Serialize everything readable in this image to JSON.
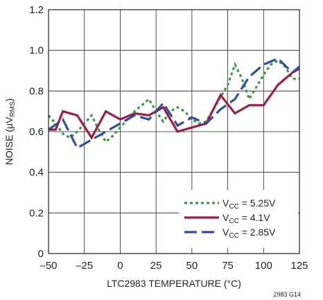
{
  "chart_data": {
    "type": "line",
    "xlabel": "LTC2983 TEMPERATURE (°C)",
    "ylabel": "NOISE (µV",
    "ylabel_sub": "RMS",
    "ylabel_suffix": ")",
    "xlim": [
      -50,
      125
    ],
    "ylim": [
      0,
      1.2
    ],
    "grid": true,
    "legend_position": "bottom-right",
    "x_ticks": [
      -50,
      -25,
      0,
      25,
      50,
      75,
      100,
      125
    ],
    "x_tick_labels": [
      "–50",
      "–25",
      "0",
      "25",
      "50",
      "75",
      "100",
      "125"
    ],
    "y_ticks": [
      0,
      0.2,
      0.4,
      0.6,
      0.8,
      1.0,
      1.2
    ],
    "y_tick_labels": [
      "0",
      "0.2",
      "0.4",
      "0.6",
      "0.8",
      "1.0",
      "1.2"
    ],
    "series": [
      {
        "name": "5.25V",
        "legend_prefix": "V",
        "legend_sub": "CC",
        "legend_suffix": " = 5.25V",
        "color": "#3a9a4a",
        "dash": "dotted",
        "x": [
          -50,
          -45,
          -40,
          -35,
          -30,
          -25,
          -20,
          -15,
          -10,
          -5,
          0,
          5,
          10,
          15,
          20,
          25,
          30,
          35,
          40,
          45,
          50,
          55,
          60,
          65,
          70,
          75,
          80,
          85,
          90,
          95,
          100,
          105,
          110,
          115,
          120,
          125
        ],
        "y": [
          0.68,
          0.64,
          0.59,
          0.57,
          0.6,
          0.64,
          0.68,
          0.61,
          0.55,
          0.58,
          0.62,
          0.66,
          0.7,
          0.73,
          0.76,
          0.7,
          0.65,
          0.7,
          0.72,
          0.7,
          0.66,
          0.64,
          0.65,
          0.71,
          0.77,
          0.83,
          0.93,
          0.86,
          0.76,
          0.82,
          0.88,
          0.93,
          0.95,
          0.92,
          0.86,
          0.86
        ]
      },
      {
        "name": "4.1V",
        "legend_prefix": "V",
        "legend_sub": "CC",
        "legend_suffix": " = 4.1V",
        "color": "#9c1c47",
        "dash": "solid",
        "x": [
          -50,
          -45,
          -40,
          -30,
          -20,
          -10,
          0,
          10,
          20,
          30,
          40,
          50,
          60,
          70,
          80,
          90,
          100,
          110,
          120,
          125
        ],
        "y": [
          0.61,
          0.61,
          0.7,
          0.68,
          0.57,
          0.7,
          0.66,
          0.69,
          0.68,
          0.72,
          0.6,
          0.62,
          0.64,
          0.78,
          0.69,
          0.73,
          0.73,
          0.83,
          0.89,
          0.91
        ]
      },
      {
        "name": "2.85V",
        "legend_prefix": "V",
        "legend_sub": "CC",
        "legend_suffix": " = 2.85V",
        "color": "#2f4e9c",
        "dash": "dashed",
        "x": [
          -50,
          -40,
          -30,
          -20,
          -10,
          0,
          10,
          20,
          30,
          40,
          50,
          60,
          70,
          80,
          90,
          100,
          110,
          120,
          125
        ],
        "y": [
          0.61,
          0.66,
          0.52,
          0.56,
          0.6,
          0.64,
          0.68,
          0.66,
          0.74,
          0.63,
          0.67,
          0.64,
          0.71,
          0.76,
          0.87,
          0.93,
          0.96,
          0.89,
          0.92
        ]
      }
    ],
    "annotations": [
      "2983 G14"
    ]
  }
}
